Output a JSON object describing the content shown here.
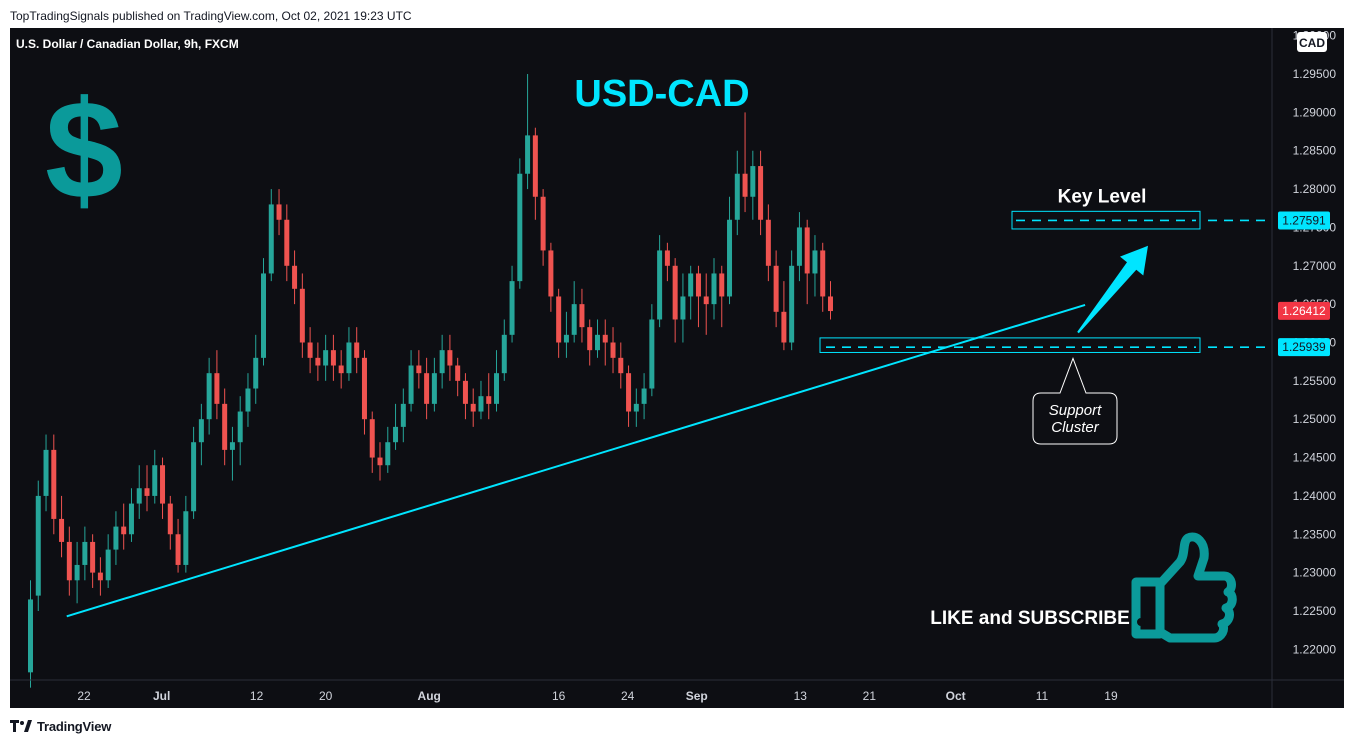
{
  "header": {
    "published": "TopTradingSignals published on TradingView.com, Oct 02, 2021 19:23 UTC"
  },
  "footer": {
    "brand": "TradingView"
  },
  "chart_data": {
    "type": "candlestick",
    "symbol_title": "U.S. Dollar / Canadian Dollar, 9h, FXCM",
    "currency": "CAD",
    "ylim": [
      1.216,
      1.301
    ],
    "yticks": [
      "1.22000",
      "1.22500",
      "1.23000",
      "1.23500",
      "1.24000",
      "1.24500",
      "1.25000",
      "1.25500",
      "1.26000",
      "1.26500",
      "1.27000",
      "1.27500",
      "1.28000",
      "1.28500",
      "1.29000",
      "1.29500",
      "1.30000"
    ],
    "xticks": [
      {
        "label": "22",
        "day": 0,
        "bold": false
      },
      {
        "label": "Jul",
        "day": 9,
        "bold": true
      },
      {
        "label": "12",
        "day": 20,
        "bold": false
      },
      {
        "label": "20",
        "day": 28,
        "bold": false
      },
      {
        "label": "Aug",
        "day": 40,
        "bold": true
      },
      {
        "label": "16",
        "day": 55,
        "bold": false
      },
      {
        "label": "24",
        "day": 63,
        "bold": false
      },
      {
        "label": "Sep",
        "day": 71,
        "bold": true
      },
      {
        "label": "13",
        "day": 83,
        "bold": false
      },
      {
        "label": "21",
        "day": 91,
        "bold": false
      },
      {
        "label": "Oct",
        "day": 101,
        "bold": true
      },
      {
        "label": "11",
        "day": 111,
        "bold": false
      },
      {
        "label": "19",
        "day": 119,
        "bold": false
      }
    ],
    "candles": [
      [
        1.217,
        1.2265,
        1.215,
        1.229
      ],
      [
        1.227,
        1.24,
        1.225,
        1.242
      ],
      [
        1.24,
        1.246,
        1.238,
        1.248
      ],
      [
        1.246,
        1.237,
        1.235,
        1.248
      ],
      [
        1.237,
        1.234,
        1.232,
        1.24
      ],
      [
        1.234,
        1.229,
        1.227,
        1.236
      ],
      [
        1.229,
        1.231,
        1.226,
        1.234
      ],
      [
        1.231,
        1.234,
        1.229,
        1.236
      ],
      [
        1.234,
        1.23,
        1.228,
        1.235
      ],
      [
        1.23,
        1.229,
        1.227,
        1.232
      ],
      [
        1.229,
        1.233,
        1.228,
        1.235
      ],
      [
        1.233,
        1.236,
        1.231,
        1.238
      ],
      [
        1.236,
        1.235,
        1.233,
        1.239
      ],
      [
        1.235,
        1.239,
        1.234,
        1.241
      ],
      [
        1.239,
        1.241,
        1.237,
        1.244
      ],
      [
        1.241,
        1.24,
        1.238,
        1.244
      ],
      [
        1.24,
        1.244,
        1.239,
        1.246
      ],
      [
        1.244,
        1.239,
        1.237,
        1.245
      ],
      [
        1.239,
        1.235,
        1.233,
        1.24
      ],
      [
        1.235,
        1.231,
        1.23,
        1.237
      ],
      [
        1.231,
        1.238,
        1.23,
        1.24
      ],
      [
        1.238,
        1.247,
        1.237,
        1.249
      ],
      [
        1.247,
        1.25,
        1.244,
        1.252
      ],
      [
        1.25,
        1.256,
        1.248,
        1.258
      ],
      [
        1.256,
        1.252,
        1.25,
        1.259
      ],
      [
        1.252,
        1.246,
        1.244,
        1.254
      ],
      [
        1.246,
        1.247,
        1.242,
        1.249
      ],
      [
        1.247,
        1.251,
        1.244,
        1.253
      ],
      [
        1.251,
        1.254,
        1.249,
        1.256
      ],
      [
        1.254,
        1.258,
        1.252,
        1.261
      ],
      [
        1.258,
        1.269,
        1.257,
        1.271
      ],
      [
        1.269,
        1.278,
        1.268,
        1.28
      ],
      [
        1.278,
        1.276,
        1.274,
        1.28
      ],
      [
        1.276,
        1.27,
        1.268,
        1.278
      ],
      [
        1.27,
        1.267,
        1.265,
        1.272
      ],
      [
        1.267,
        1.26,
        1.258,
        1.269
      ],
      [
        1.26,
        1.258,
        1.256,
        1.262
      ],
      [
        1.258,
        1.257,
        1.255,
        1.26
      ],
      [
        1.257,
        1.259,
        1.255,
        1.261
      ],
      [
        1.259,
        1.257,
        1.255,
        1.261
      ],
      [
        1.257,
        1.256,
        1.254,
        1.259
      ],
      [
        1.256,
        1.26,
        1.255,
        1.262
      ],
      [
        1.26,
        1.258,
        1.256,
        1.262
      ],
      [
        1.258,
        1.25,
        1.248,
        1.259
      ],
      [
        1.25,
        1.245,
        1.243,
        1.251
      ],
      [
        1.245,
        1.244,
        1.242,
        1.247
      ],
      [
        1.244,
        1.247,
        1.243,
        1.249
      ],
      [
        1.247,
        1.249,
        1.246,
        1.252
      ],
      [
        1.249,
        1.252,
        1.247,
        1.254
      ],
      [
        1.252,
        1.257,
        1.251,
        1.259
      ],
      [
        1.257,
        1.256,
        1.254,
        1.259
      ],
      [
        1.256,
        1.252,
        1.25,
        1.258
      ],
      [
        1.252,
        1.256,
        1.251,
        1.258
      ],
      [
        1.256,
        1.259,
        1.254,
        1.261
      ],
      [
        1.259,
        1.257,
        1.255,
        1.261
      ],
      [
        1.257,
        1.255,
        1.253,
        1.258
      ],
      [
        1.255,
        1.252,
        1.25,
        1.256
      ],
      [
        1.252,
        1.251,
        1.249,
        1.254
      ],
      [
        1.251,
        1.253,
        1.25,
        1.255
      ],
      [
        1.253,
        1.252,
        1.25,
        1.256
      ],
      [
        1.252,
        1.256,
        1.251,
        1.259
      ],
      [
        1.256,
        1.261,
        1.255,
        1.263
      ],
      [
        1.261,
        1.268,
        1.26,
        1.27
      ],
      [
        1.268,
        1.282,
        1.267,
        1.284
      ],
      [
        1.282,
        1.287,
        1.28,
        1.295
      ],
      [
        1.287,
        1.279,
        1.276,
        1.288
      ],
      [
        1.279,
        1.272,
        1.27,
        1.28
      ],
      [
        1.272,
        1.266,
        1.264,
        1.273
      ],
      [
        1.266,
        1.26,
        1.258,
        1.267
      ],
      [
        1.26,
        1.261,
        1.258,
        1.264
      ],
      [
        1.261,
        1.265,
        1.26,
        1.268
      ],
      [
        1.265,
        1.262,
        1.26,
        1.267
      ],
      [
        1.262,
        1.259,
        1.257,
        1.263
      ],
      [
        1.259,
        1.261,
        1.258,
        1.263
      ],
      [
        1.261,
        1.26,
        1.257,
        1.263
      ],
      [
        1.26,
        1.258,
        1.256,
        1.262
      ],
      [
        1.258,
        1.256,
        1.254,
        1.26
      ],
      [
        1.256,
        1.251,
        1.249,
        1.257
      ],
      [
        1.251,
        1.252,
        1.249,
        1.254
      ],
      [
        1.252,
        1.254,
        1.25,
        1.256
      ],
      [
        1.254,
        1.263,
        1.253,
        1.265
      ],
      [
        1.263,
        1.272,
        1.262,
        1.274
      ],
      [
        1.272,
        1.27,
        1.268,
        1.273
      ],
      [
        1.27,
        1.263,
        1.26,
        1.271
      ],
      [
        1.263,
        1.266,
        1.26,
        1.269
      ],
      [
        1.266,
        1.269,
        1.263,
        1.27
      ],
      [
        1.269,
        1.266,
        1.262,
        1.27
      ],
      [
        1.266,
        1.265,
        1.261,
        1.269
      ],
      [
        1.265,
        1.269,
        1.263,
        1.271
      ],
      [
        1.269,
        1.266,
        1.262,
        1.27
      ],
      [
        1.266,
        1.276,
        1.265,
        1.279
      ],
      [
        1.276,
        1.282,
        1.274,
        1.285
      ],
      [
        1.282,
        1.279,
        1.277,
        1.29
      ],
      [
        1.279,
        1.283,
        1.276,
        1.285
      ],
      [
        1.283,
        1.276,
        1.274,
        1.285
      ],
      [
        1.276,
        1.27,
        1.268,
        1.278
      ],
      [
        1.27,
        1.264,
        1.262,
        1.272
      ],
      [
        1.264,
        1.26,
        1.259,
        1.268
      ],
      [
        1.26,
        1.27,
        1.259,
        1.272
      ],
      [
        1.27,
        1.275,
        1.268,
        1.277
      ],
      [
        1.275,
        1.269,
        1.265,
        1.276
      ],
      [
        1.269,
        1.272,
        1.266,
        1.274
      ],
      [
        1.272,
        1.266,
        1.264,
        1.273
      ],
      [
        1.266,
        1.2641,
        1.263,
        1.268
      ]
    ],
    "trendline": {
      "from": {
        "day": -2,
        "price": 1.2243
      },
      "to": {
        "day": 116,
        "price": 1.2649
      }
    },
    "resistance": {
      "label": "Key Level",
      "price": 1.27591,
      "zone": [
        1.2748,
        1.2771
      ]
    },
    "support": {
      "price": 1.25939,
      "zone": [
        1.2587,
        1.2606
      ],
      "callout": [
        "Support",
        "Cluster"
      ]
    },
    "last_price": 1.26412,
    "price_labels": {
      "resistance": "1.27591",
      "last": "1.26412",
      "support": "1.25939"
    },
    "annotations": {
      "title": "USD-CAD",
      "cta": "LIKE and SUBSCRIBE"
    },
    "colors": {
      "background": "#0d0e13",
      "up": "#26a69a",
      "down": "#ef5350",
      "accent": "#00e5ff",
      "dollar": "#0b9a9a",
      "last_price_bg": "#f23645"
    }
  }
}
